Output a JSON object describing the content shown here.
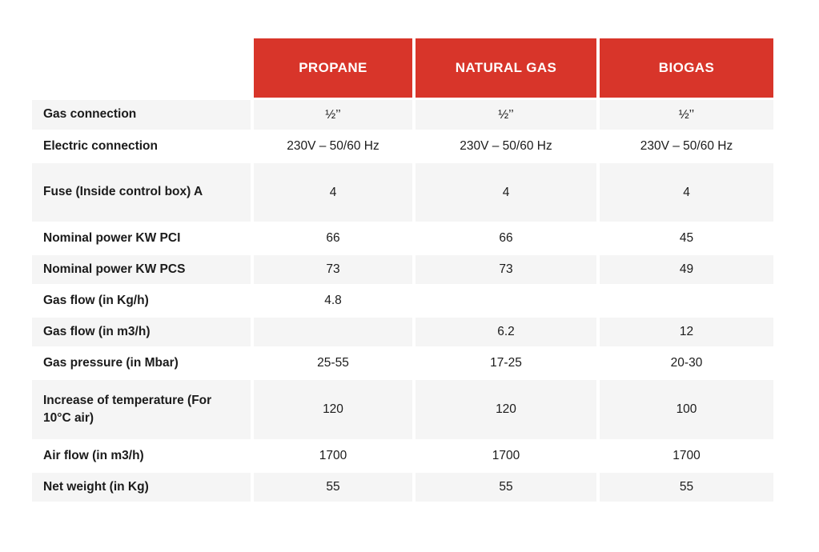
{
  "table": {
    "header": {
      "labels": [
        "PROPANE",
        "NATURAL GAS",
        "BIOGAS"
      ]
    },
    "rows": [
      {
        "label": "Gas connection",
        "values": [
          "½’’",
          "½’’",
          "½’’"
        ],
        "shaded": true
      },
      {
        "label": "Electric connection",
        "values": [
          "230V – 50/60 Hz",
          "230V – 50/60 Hz",
          "230V – 50/60 Hz"
        ],
        "shaded": false
      },
      {
        "label": "Fuse (Inside control box) A",
        "values": [
          "4",
          "4",
          "4"
        ],
        "shaded": true
      },
      {
        "label": "Nominal power KW PCI",
        "values": [
          "66",
          "66",
          "45"
        ],
        "shaded": false
      },
      {
        "label": "Nominal power KW PCS",
        "values": [
          "73",
          "73",
          "49"
        ],
        "shaded": true
      },
      {
        "label": "Gas flow (in Kg/h)",
        "values": [
          "4.8",
          "",
          ""
        ],
        "shaded": false
      },
      {
        "label": "Gas flow (in m3/h)",
        "values": [
          "",
          "6.2",
          "12"
        ],
        "shaded": true
      },
      {
        "label": "Gas pressure (in Mbar)",
        "values": [
          "25-55",
          "17-25",
          "20-30"
        ],
        "shaded": false
      },
      {
        "label": "Increase of temperature (For 10°C air)",
        "values": [
          "120",
          "120",
          "100"
        ],
        "shaded": true
      },
      {
        "label": "Air flow (in m3/h)",
        "values": [
          "1700",
          "1700",
          "1700"
        ],
        "shaded": false
      },
      {
        "label": "Net weight (in Kg)",
        "values": [
          "55",
          "55",
          "55"
        ],
        "shaded": true
      }
    ],
    "colors": {
      "header_bg": "#d8352a",
      "header_text": "#ffffff",
      "shaded_row_bg": "#f5f5f5",
      "body_text": "#1b1b1b"
    }
  }
}
